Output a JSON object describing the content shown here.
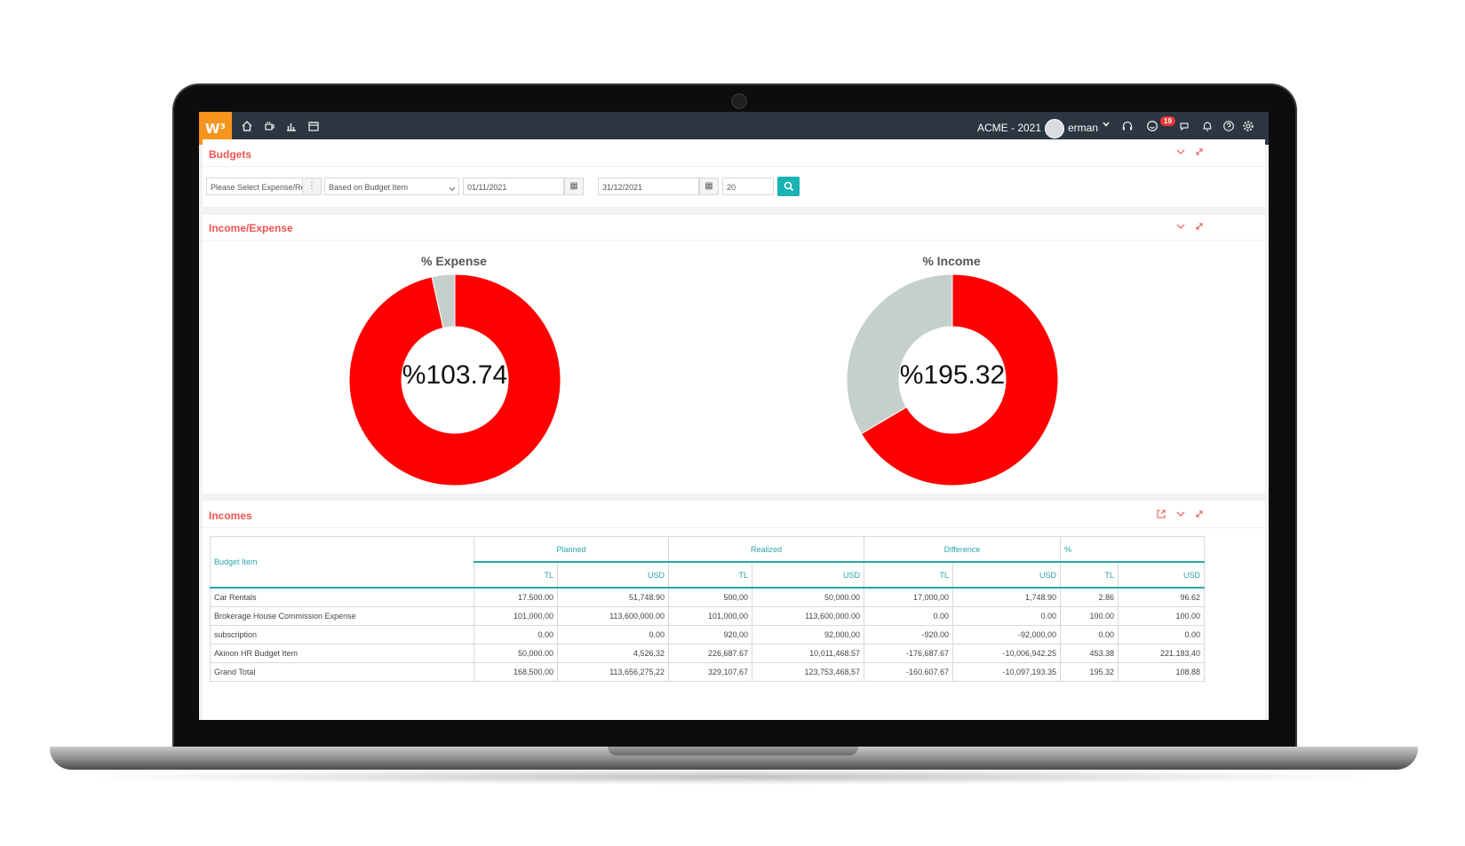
{
  "topbar": {
    "logo": "W³",
    "company": "ACME - 2021",
    "user": "erman",
    "notification_count": "19"
  },
  "budgets_panel": {
    "title": "Budgets",
    "filters": {
      "type_select": "Please Select Expense/Re",
      "basis_select": "Based on Budget Item",
      "start_date": "01/11/2021",
      "end_date": "31/12/2021",
      "page_size": "20"
    }
  },
  "income_expense_panel": {
    "title": "Income/Expense",
    "chart_data": [
      {
        "type": "pie",
        "title": "% Expense",
        "center_label": "%103.74",
        "values": [
          96.5,
          3.5
        ],
        "colors": [
          "#ff0000",
          "#c5cfcc"
        ]
      },
      {
        "type": "pie",
        "title": "% Income",
        "center_label": "%195.32",
        "values": [
          66.5,
          33.5
        ],
        "colors": [
          "#ff0000",
          "#c5cfcc"
        ]
      }
    ]
  },
  "incomes_panel": {
    "title": "Incomes",
    "table": {
      "budget_item_header": "Budget Item",
      "groups": [
        "Planned",
        "Realized",
        "Difference",
        "%"
      ],
      "subheaders": [
        "TL",
        "USD",
        "TL",
        "USD",
        "TL",
        "USD",
        "TL",
        "USD"
      ],
      "rows": [
        {
          "item": "Car Rentals",
          "cells": [
            "17.500.00",
            "51,748.90",
            "500,00",
            "50,000.00",
            "17,000,00",
            "1,748.90",
            "2.86",
            "96.62"
          ]
        },
        {
          "item": "Brokerage House Commission Expense",
          "cells": [
            "101,000,00",
            "113,600,000.00",
            "101,000,00",
            "113,600,000.00",
            "0.00",
            "0.00",
            "100.00",
            "100.00"
          ]
        },
        {
          "item": "subscription",
          "cells": [
            "0.00",
            "0.00",
            "920,00",
            "92,000,00",
            "-920.00",
            "-92,000,00",
            "0.00",
            "0.00"
          ]
        },
        {
          "item": "Akinon HR Budget Item",
          "cells": [
            "50,000.00",
            "4,526,32",
            "226,687.67",
            "10,011,468.57",
            "-176,687.67",
            "-10,006,942.25",
            "453.38",
            "221.183,40"
          ]
        },
        {
          "item": "Grand Total",
          "cells": [
            "168,500,00",
            "113,656,275,22",
            "329,107,67",
            "123,753,468,57",
            "-160.607.67",
            "-10,097,193.35",
            "195.32",
            "108.88"
          ]
        }
      ]
    }
  }
}
